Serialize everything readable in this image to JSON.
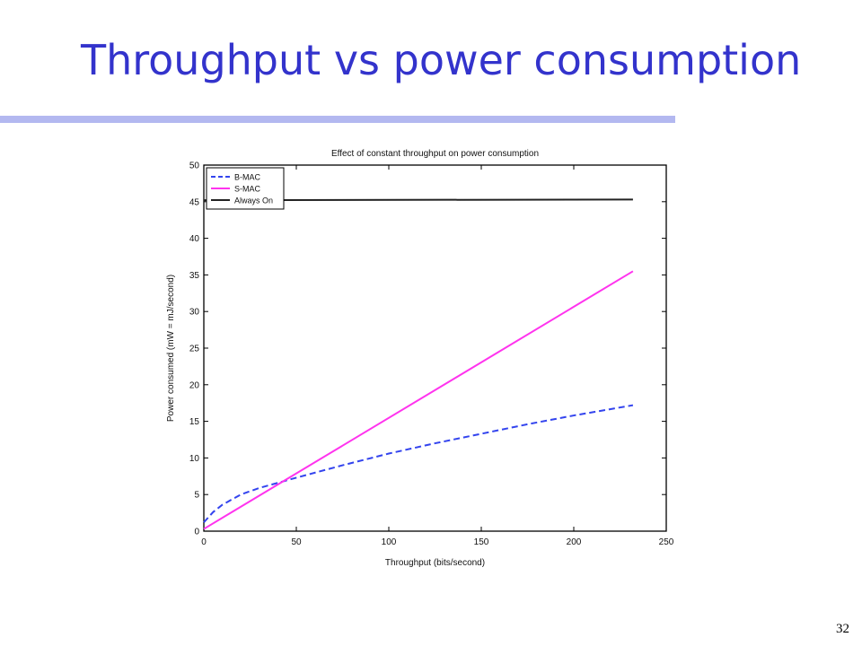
{
  "slide": {
    "title": "Throughput vs power consumption",
    "page_number": "32"
  },
  "colors": {
    "title": "#3333cc",
    "rule": "#b3b8f0",
    "bmac": "#3344ee",
    "smac": "#ff33ee",
    "always_on": "#222222"
  },
  "chart_data": {
    "type": "line",
    "title": "Effect of constant throughput on power consumption",
    "xlabel": "Throughput (bits/second)",
    "ylabel": "Power consumed (mW = mJ/second)",
    "xlim": [
      0,
      250
    ],
    "ylim": [
      0,
      50
    ],
    "xticks": [
      0,
      50,
      100,
      150,
      200,
      250
    ],
    "yticks": [
      0,
      5,
      10,
      15,
      20,
      25,
      30,
      35,
      40,
      45,
      50
    ],
    "grid": false,
    "legend_position": "top-left",
    "series": [
      {
        "name": "B-MAC",
        "style": "dashed",
        "color": "#3344ee",
        "x": [
          0,
          5,
          10,
          20,
          30,
          40,
          50,
          75,
          100,
          125,
          150,
          175,
          200,
          232
        ],
        "y": [
          1.2,
          2.6,
          3.6,
          5.0,
          5.9,
          6.6,
          7.3,
          9.0,
          10.6,
          12.0,
          13.3,
          14.6,
          15.8,
          17.2
        ]
      },
      {
        "name": "S-MAC",
        "style": "solid",
        "color": "#ff33ee",
        "x": [
          0,
          232
        ],
        "y": [
          0.3,
          35.5
        ]
      },
      {
        "name": "Always On",
        "style": "solid",
        "color": "#222222",
        "x": [
          0,
          232
        ],
        "y": [
          45.2,
          45.3
        ]
      }
    ]
  }
}
